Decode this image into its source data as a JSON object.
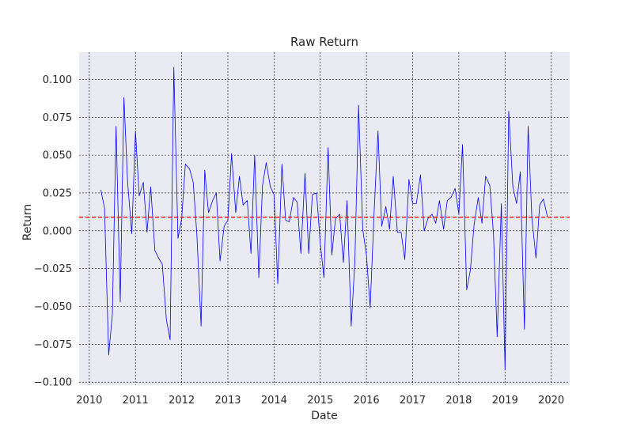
{
  "chart_data": {
    "type": "line",
    "title": "Raw Return",
    "xlabel": "Date",
    "ylabel": "Return",
    "x_range": [
      2009.78,
      2020.4
    ],
    "ylim": [
      -0.102,
      0.118
    ],
    "x_ticks": [
      "2010",
      "2011",
      "2012",
      "2013",
      "2014",
      "2015",
      "2016",
      "2017",
      "2018",
      "2019",
      "2020"
    ],
    "y_ticks": [
      -0.1,
      -0.075,
      -0.05,
      -0.025,
      0.0,
      0.025,
      0.05,
      0.075,
      0.1
    ],
    "y_tick_labels": [
      "−0.100",
      "−0.075",
      "−0.050",
      "−0.025",
      "0.000",
      "0.025",
      "0.050",
      "0.075",
      "0.100"
    ],
    "grid": true,
    "grid_style": "dashed",
    "colors": {
      "plot_bg": "#eaeaf2",
      "series": "#0000ff",
      "mean_line": "#ff0000",
      "grid": "#000000"
    },
    "series": [
      {
        "x": [
          2010.25,
          2010.33,
          2010.42,
          2010.5,
          2010.58,
          2010.67,
          2010.75,
          2010.83,
          2010.92,
          2011.0,
          2011.08,
          2011.17,
          2011.25,
          2011.33,
          2011.42,
          2011.5,
          2011.58,
          2011.67,
          2011.75,
          2011.83,
          2011.92,
          2012.0,
          2012.08,
          2012.17,
          2012.25,
          2012.33,
          2012.42,
          2012.5,
          2012.58,
          2012.67,
          2012.75,
          2012.83,
          2012.92,
          2013.0,
          2013.08,
          2013.17,
          2013.25,
          2013.33,
          2013.42,
          2013.5,
          2013.58,
          2013.67,
          2013.75,
          2013.83,
          2013.92,
          2014.0,
          2014.08,
          2014.17,
          2014.25,
          2014.33,
          2014.42,
          2014.5,
          2014.58,
          2014.67,
          2014.75,
          2014.83,
          2014.92,
          2015.0,
          2015.08,
          2015.17,
          2015.25,
          2015.33,
          2015.42,
          2015.5,
          2015.58,
          2015.67,
          2015.75,
          2015.83,
          2015.92,
          2016.0,
          2016.08,
          2016.17,
          2016.25,
          2016.33,
          2016.42,
          2016.5,
          2016.58,
          2016.67,
          2016.75,
          2016.83,
          2016.92,
          2017.0,
          2017.08,
          2017.17,
          2017.25,
          2017.33,
          2017.42,
          2017.5,
          2017.58,
          2017.67,
          2017.75,
          2017.83,
          2017.92,
          2018.0,
          2018.08,
          2018.17,
          2018.25,
          2018.33,
          2018.42,
          2018.5,
          2018.58,
          2018.67,
          2018.75,
          2018.83,
          2018.92,
          2019.0,
          2019.08,
          2019.17,
          2019.25,
          2019.33,
          2019.42,
          2019.5,
          2019.58,
          2019.67,
          2019.75,
          2019.83,
          2019.92
        ],
        "y": [
          0.027,
          0.015,
          -0.082,
          -0.055,
          0.069,
          -0.047,
          0.088,
          0.032,
          -0.002,
          0.066,
          0.023,
          0.032,
          -0.001,
          0.029,
          -0.013,
          -0.018,
          -0.022,
          -0.059,
          -0.072,
          0.108,
          -0.005,
          0.008,
          0.044,
          0.041,
          0.032,
          -0.003,
          -0.063,
          0.04,
          0.012,
          0.02,
          0.025,
          -0.02,
          0.003,
          0.007,
          0.051,
          0.012,
          0.036,
          0.017,
          0.02,
          -0.015,
          0.05,
          -0.031,
          0.03,
          0.045,
          0.029,
          0.024,
          -0.035,
          0.044,
          0.007,
          0.006,
          0.022,
          0.019,
          -0.015,
          0.038,
          -0.015,
          0.024,
          0.025,
          -0.008,
          -0.031,
          0.055,
          -0.016,
          0.008,
          0.011,
          -0.021,
          0.02,
          -0.063,
          -0.02,
          0.083,
          0.001,
          -0.016,
          -0.051,
          0.015,
          0.066,
          0.003,
          0.016,
          0.001,
          0.036,
          -0.001,
          -0.001,
          -0.019,
          0.034,
          0.018,
          0.018,
          0.037,
          0.0,
          0.008,
          0.011,
          0.005,
          0.02,
          0.001,
          0.02,
          0.022,
          0.028,
          0.011,
          0.057,
          -0.039,
          -0.026,
          0.004,
          0.022,
          0.005,
          0.036,
          0.03,
          -0.002,
          -0.07,
          0.018,
          -0.092,
          0.079,
          0.029,
          0.018,
          0.039,
          -0.065,
          0.069,
          0.009,
          -0.018,
          0.017,
          0.021,
          0.009
        ]
      }
    ],
    "mean_line": {
      "y": 0.009,
      "style": "dashed"
    }
  }
}
